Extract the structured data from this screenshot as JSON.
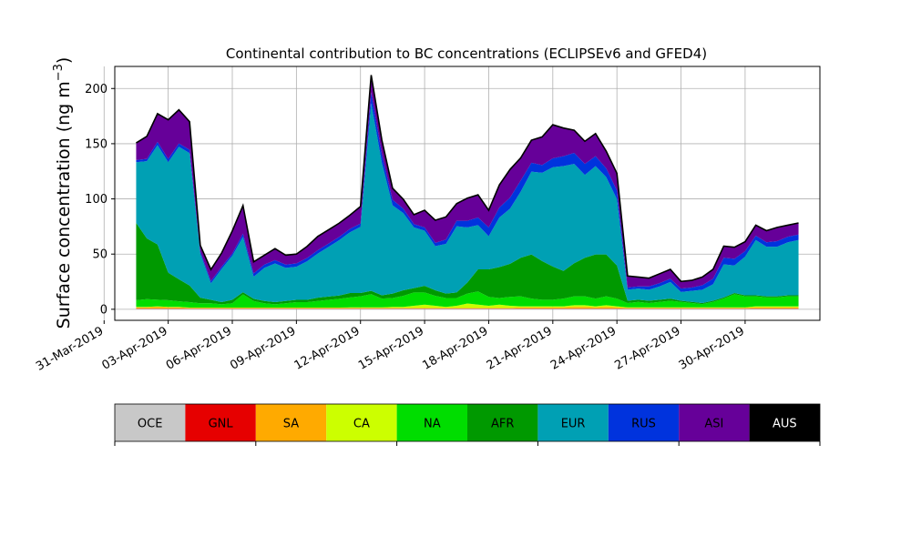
{
  "chart_data": {
    "type": "area",
    "stacked": true,
    "title": "Continental contribution to BC concentrations (ECLIPSEv6 and GFED4)",
    "ylabel": "Surface concentration (ng m",
    "ylabel_superscript": "−3",
    "ylabel_close": ")",
    "ylim": [
      -10,
      220
    ],
    "yticks": [
      0,
      50,
      100,
      150,
      200
    ],
    "xlim": [
      "2019-03-31T12:00",
      "2019-05-03T12:00"
    ],
    "xticks": [
      "2019-03-31",
      "2019-04-03",
      "2019-04-06",
      "2019-04-09",
      "2019-04-12",
      "2019-04-15",
      "2019-04-18",
      "2019-04-21",
      "2019-04-24",
      "2019-04-27",
      "2019-04-30"
    ],
    "xtick_labels": [
      "31-Mar-2019",
      "03-Apr-2019",
      "06-Apr-2019",
      "09-Apr-2019",
      "12-Apr-2019",
      "15-Apr-2019",
      "18-Apr-2019",
      "21-Apr-2019",
      "24-Apr-2019",
      "27-Apr-2019",
      "30-Apr-2019"
    ],
    "grid": true,
    "legend_placement": "colorbar below the plot",
    "x": [
      "2019-04-01T12:00",
      "2019-04-02T00:00",
      "2019-04-02T12:00",
      "2019-04-03T00:00",
      "2019-04-03T12:00",
      "2019-04-04T00:00",
      "2019-04-04T12:00",
      "2019-04-05T00:00",
      "2019-04-05T12:00",
      "2019-04-06T00:00",
      "2019-04-06T12:00",
      "2019-04-07T00:00",
      "2019-04-07T12:00",
      "2019-04-08T00:00",
      "2019-04-08T12:00",
      "2019-04-09T00:00",
      "2019-04-09T12:00",
      "2019-04-10T00:00",
      "2019-04-10T12:00",
      "2019-04-11T00:00",
      "2019-04-11T12:00",
      "2019-04-12T00:00",
      "2019-04-12T12:00",
      "2019-04-13T00:00",
      "2019-04-13T12:00",
      "2019-04-14T00:00",
      "2019-04-14T12:00",
      "2019-04-15T00:00",
      "2019-04-15T12:00",
      "2019-04-16T00:00",
      "2019-04-16T12:00",
      "2019-04-17T00:00",
      "2019-04-17T12:00",
      "2019-04-18T00:00",
      "2019-04-18T12:00",
      "2019-04-19T00:00",
      "2019-04-19T12:00",
      "2019-04-20T00:00",
      "2019-04-20T12:00",
      "2019-04-21T00:00",
      "2019-04-21T12:00",
      "2019-04-22T00:00",
      "2019-04-22T12:00",
      "2019-04-23T00:00",
      "2019-04-23T12:00",
      "2019-04-24T00:00",
      "2019-04-24T12:00",
      "2019-04-25T00:00",
      "2019-04-25T12:00",
      "2019-04-26T00:00",
      "2019-04-26T12:00",
      "2019-04-27T00:00",
      "2019-04-27T12:00",
      "2019-04-28T00:00",
      "2019-04-28T12:00",
      "2019-04-29T00:00",
      "2019-04-29T12:00",
      "2019-04-30T00:00",
      "2019-04-30T12:00",
      "2019-05-01T00:00",
      "2019-05-01T12:00",
      "2019-05-02T00:00",
      "2019-05-02T12:00"
    ],
    "series": [
      {
        "name": "OCE",
        "color": "#c8c8c8",
        "values": [
          0.5,
          0.5,
          0.5,
          0.5,
          0.5,
          0.5,
          0.5,
          0.5,
          0.5,
          0.5,
          0.5,
          0.5,
          0.5,
          0.5,
          0.5,
          0.5,
          0.5,
          0.5,
          0.5,
          0.5,
          0.5,
          0.5,
          0.5,
          0.5,
          0.5,
          0.5,
          0.5,
          0.5,
          0.5,
          0.5,
          0.5,
          0.5,
          0.5,
          0.5,
          0.5,
          0.5,
          0.5,
          0.5,
          0.5,
          0.5,
          0.5,
          0.5,
          0.5,
          0.5,
          0.5,
          0.5,
          0.5,
          0.5,
          0.5,
          0.5,
          0.5,
          0.5,
          0.5,
          0.5,
          0.5,
          0.5,
          0.5,
          0.5,
          0.5,
          0.5,
          0.5,
          0.5,
          0.5
        ]
      },
      {
        "name": "GNL",
        "color": "#e60000",
        "values": [
          0.2,
          0.2,
          0.2,
          0.2,
          0.2,
          0.2,
          0.2,
          0.2,
          0.2,
          0.2,
          0.2,
          0.2,
          0.2,
          0.2,
          0.2,
          0.2,
          0.2,
          0.2,
          0.2,
          0.2,
          0.2,
          0.2,
          0.2,
          0.2,
          0.2,
          0.2,
          0.2,
          0.2,
          0.2,
          0.2,
          0.2,
          0.2,
          0.2,
          0.2,
          0.2,
          0.2,
          0.2,
          0.2,
          0.2,
          0.2,
          0.2,
          0.2,
          0.2,
          0.2,
          0.2,
          0.2,
          0.2,
          0.2,
          0.2,
          0.2,
          0.2,
          0.2,
          0.2,
          0.2,
          0.2,
          0.2,
          0.2,
          0.2,
          0.2,
          0.2,
          0.2,
          0.2,
          0.2
        ]
      },
      {
        "name": "SA",
        "color": "#ffaa00",
        "values": [
          1,
          1,
          1.5,
          1,
          1,
          0.5,
          0.5,
          0.5,
          0.5,
          0.5,
          0.5,
          0.5,
          0.5,
          0.5,
          0.5,
          0.5,
          0.5,
          0.5,
          0.5,
          0.5,
          0.5,
          0.5,
          0.5,
          0.5,
          0.5,
          0.5,
          0.5,
          0.5,
          0.5,
          0.5,
          0.5,
          0.5,
          0.5,
          0.5,
          0.5,
          0.5,
          1,
          1,
          1,
          1,
          1,
          1.5,
          1.5,
          1,
          1.5,
          1,
          0.5,
          0.5,
          0.5,
          0.5,
          0.5,
          0.5,
          0.5,
          0.5,
          0.5,
          0.5,
          0.5,
          0.5,
          1,
          1,
          1,
          1,
          1
        ]
      },
      {
        "name": "CA",
        "color": "#ccff00",
        "values": [
          0.5,
          0.5,
          0.5,
          0.5,
          0.5,
          0.3,
          0.3,
          0.3,
          0.3,
          0.3,
          0.3,
          0.3,
          0.3,
          0.3,
          0.3,
          0.3,
          0.3,
          0.3,
          0.3,
          0.3,
          0.5,
          0.5,
          0.5,
          0.5,
          1,
          1,
          2,
          3,
          2,
          1,
          2,
          4,
          3,
          2,
          3,
          2,
          1,
          1,
          1,
          1,
          1,
          1.5,
          1.5,
          1,
          1.5,
          1,
          0.5,
          0.5,
          0.5,
          0.5,
          0.5,
          0.5,
          0.5,
          0.5,
          0.5,
          0.5,
          0.5,
          0.5,
          1,
          1,
          1,
          1,
          1
        ]
      },
      {
        "name": "NA",
        "color": "#00dd00",
        "values": [
          6,
          7,
          6,
          6,
          5,
          5,
          4,
          4,
          3,
          4,
          12,
          6,
          4,
          3,
          4,
          5,
          5,
          6,
          7,
          8,
          9,
          10,
          12,
          8,
          8,
          10,
          12,
          11,
          9,
          8,
          7,
          9,
          12,
          8,
          6,
          8,
          9,
          7,
          6,
          6,
          7,
          8,
          8,
          7,
          8,
          7,
          4,
          5,
          4,
          5,
          6,
          5,
          4,
          3,
          5,
          8,
          12,
          10,
          9,
          8,
          8,
          9,
          9
        ]
      },
      {
        "name": "AFR",
        "color": "#009900",
        "values": [
          70,
          55,
          50,
          25,
          20,
          15,
          5,
          3,
          2,
          3,
          2,
          2,
          2,
          2,
          2,
          2,
          2,
          3,
          3,
          3,
          4,
          3,
          3,
          3,
          4,
          5,
          4,
          6,
          5,
          4,
          5,
          10,
          20,
          25,
          28,
          30,
          35,
          40,
          35,
          30,
          25,
          30,
          35,
          40,
          38,
          30,
          2,
          2,
          2,
          2,
          2,
          1,
          1,
          1,
          1,
          1,
          1,
          1,
          1,
          1,
          1,
          1,
          1
        ]
      },
      {
        "name": "EUR",
        "color": "#00a0b4",
        "values": [
          55,
          70,
          90,
          100,
          120,
          120,
          40,
          15,
          30,
          40,
          50,
          20,
          30,
          35,
          30,
          30,
          35,
          40,
          45,
          50,
          55,
          60,
          170,
          120,
          80,
          70,
          55,
          50,
          40,
          45,
          60,
          50,
          40,
          30,
          45,
          50,
          60,
          75,
          80,
          90,
          95,
          90,
          75,
          80,
          70,
          60,
          10,
          10,
          10,
          12,
          15,
          8,
          10,
          12,
          15,
          30,
          25,
          35,
          50,
          45,
          45,
          48,
          50
        ]
      },
      {
        "name": "RUS",
        "color": "#0033dd",
        "values": [
          2,
          2,
          3,
          3,
          3,
          3,
          2,
          2,
          2,
          2,
          3,
          3,
          3,
          3,
          3,
          3,
          3,
          3,
          3,
          3,
          3,
          3,
          10,
          8,
          5,
          4,
          3,
          3,
          3,
          4,
          5,
          6,
          7,
          8,
          9,
          10,
          10,
          8,
          7,
          8,
          9,
          10,
          10,
          9,
          8,
          8,
          2,
          2,
          3,
          3,
          3,
          3,
          3,
          4,
          5,
          6,
          6,
          5,
          4,
          4,
          5,
          5,
          5
        ]
      },
      {
        "name": "ASI",
        "color": "#660099",
        "values": [
          15,
          20,
          25,
          35,
          30,
          25,
          5,
          10,
          12,
          20,
          25,
          10,
          8,
          10,
          8,
          8,
          10,
          12,
          12,
          12,
          12,
          15,
          15,
          12,
          10,
          8,
          8,
          15,
          20,
          20,
          15,
          20,
          20,
          15,
          20,
          25,
          20,
          20,
          25,
          30,
          25,
          20,
          20,
          20,
          15,
          15,
          10,
          8,
          7,
          8,
          8,
          6,
          6,
          7,
          8,
          10,
          10,
          8,
          9,
          10,
          12,
          10,
          10
        ]
      },
      {
        "name": "AUS",
        "color": "#000000",
        "values": [
          0.5,
          0.5,
          0.5,
          0.5,
          0.5,
          0.5,
          0.5,
          0.5,
          0.5,
          0.5,
          0.5,
          0.5,
          0.5,
          0.5,
          0.5,
          0.5,
          0.5,
          0.5,
          0.5,
          0.5,
          0.5,
          0.5,
          0.5,
          0.5,
          0.5,
          0.5,
          0.5,
          0.5,
          0.5,
          0.5,
          0.5,
          0.5,
          0.5,
          0.5,
          0.5,
          0.5,
          0.5,
          0.5,
          0.5,
          0.5,
          0.5,
          0.5,
          0.5,
          0.5,
          0.5,
          0.5,
          0.5,
          0.5,
          0.5,
          0.5,
          0.5,
          0.5,
          0.5,
          0.5,
          0.5,
          0.5,
          0.5,
          0.5,
          0.5,
          0.5,
          0.5,
          0.5,
          0.5
        ]
      }
    ]
  }
}
